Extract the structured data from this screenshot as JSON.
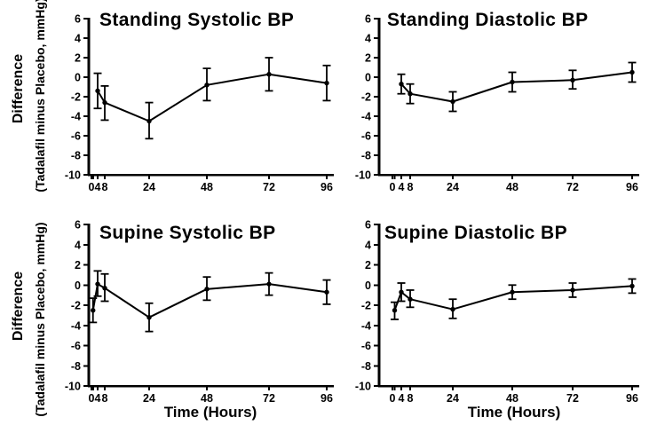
{
  "figure": {
    "background": "#ffffff",
    "ink_color": "#000000",
    "y_axis_title_line1": "Difference",
    "y_axis_title_line2": "(Tadalafil minus Placebo, mmHg)",
    "x_axis_title": "Time (Hours)"
  },
  "chart_data": [
    {
      "type": "line",
      "title": "Standing Systolic BP",
      "position": "top-left",
      "x": [
        4,
        8,
        24,
        48,
        72,
        96
      ],
      "y": [
        -1.4,
        -2.6,
        -4.5,
        -0.8,
        0.3,
        -0.6
      ],
      "err_low": [
        -3.2,
        -4.4,
        -6.3,
        -2.4,
        -1.4,
        -2.4
      ],
      "err_high": [
        0.4,
        -0.9,
        -2.6,
        0.9,
        2.0,
        1.2
      ],
      "xlabel": "",
      "ylabel": "Difference (Tadalafil minus Placebo, mmHg)",
      "ylim": [
        -10,
        6
      ],
      "yticks": [
        6,
        4,
        2,
        0,
        -2,
        -4,
        -6,
        -8,
        -10
      ],
      "xticks_labeled": [
        0,
        4,
        8,
        24,
        48,
        72,
        96
      ],
      "xticks_minor": [
        1
      ],
      "grid": false,
      "legend": null,
      "marker": "filled-circle",
      "error_bars": true
    },
    {
      "type": "line",
      "title": "Standing Diastolic BP",
      "position": "top-right",
      "x": [
        4,
        8,
        24,
        48,
        72,
        96
      ],
      "y": [
        -0.7,
        -1.7,
        -2.5,
        -0.5,
        -0.3,
        0.5
      ],
      "err_low": [
        -1.7,
        -2.7,
        -3.5,
        -1.5,
        -1.2,
        -0.5
      ],
      "err_high": [
        0.3,
        -0.7,
        -1.5,
        0.5,
        0.7,
        1.5
      ],
      "xlabel": "",
      "ylabel": "",
      "ylim": [
        -10,
        6
      ],
      "yticks": [
        6,
        4,
        2,
        0,
        -2,
        -4,
        -6,
        -8,
        -10
      ],
      "xticks_labeled": [
        0,
        4,
        8,
        24,
        48,
        72,
        96
      ],
      "xticks_minor": [
        1
      ],
      "grid": false,
      "legend": null,
      "marker": "filled-circle",
      "error_bars": true
    },
    {
      "type": "line",
      "title": "Supine Systolic BP",
      "position": "bottom-left",
      "x": [
        1,
        4,
        8,
        24,
        48,
        72,
        96
      ],
      "y": [
        -2.5,
        0.1,
        -0.3,
        -3.2,
        -0.4,
        0.1,
        -0.7
      ],
      "err_low": [
        -3.7,
        -1.1,
        -1.6,
        -4.6,
        -1.5,
        -1.0,
        -1.9
      ],
      "err_high": [
        -1.3,
        1.4,
        1.1,
        -1.8,
        0.8,
        1.2,
        0.5
      ],
      "xlabel": "Time (Hours)",
      "ylabel": "Difference (Tadalafil minus Placebo, mmHg)",
      "ylim": [
        -10,
        6
      ],
      "yticks": [
        6,
        4,
        2,
        0,
        -2,
        -4,
        -6,
        -8,
        -10
      ],
      "xticks_labeled": [
        0,
        4,
        8,
        24,
        48,
        72,
        96
      ],
      "xticks_minor": [
        1
      ],
      "grid": false,
      "legend": null,
      "marker": "filled-circle",
      "error_bars": true
    },
    {
      "type": "line",
      "title": "Supine Diastolic BP",
      "position": "bottom-right",
      "x": [
        1,
        4,
        8,
        24,
        48,
        72,
        96
      ],
      "y": [
        -2.5,
        -0.7,
        -1.4,
        -2.4,
        -0.7,
        -0.5,
        -0.1
      ],
      "err_low": [
        -3.4,
        -1.6,
        -2.2,
        -3.3,
        -1.4,
        -1.2,
        -0.8
      ],
      "err_high": [
        -1.7,
        0.2,
        -0.5,
        -1.4,
        0.0,
        0.2,
        0.6
      ],
      "xlabel": "Time (Hours)",
      "ylabel": "",
      "ylim": [
        -10,
        6
      ],
      "yticks": [
        6,
        4,
        2,
        0,
        -2,
        -4,
        -6,
        -8,
        -10
      ],
      "xticks_labeled": [
        0,
        4,
        8,
        24,
        48,
        72,
        96
      ],
      "xticks_minor": [
        1
      ],
      "grid": false,
      "legend": null,
      "marker": "filled-circle",
      "error_bars": true
    }
  ]
}
